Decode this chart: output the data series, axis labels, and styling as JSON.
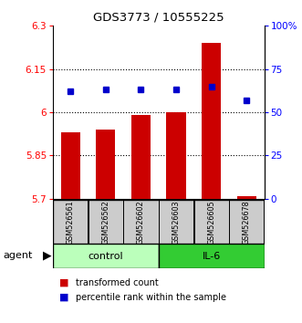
{
  "title": "GDS3773 / 10555225",
  "samples": [
    "GSM526561",
    "GSM526562",
    "GSM526602",
    "GSM526603",
    "GSM526605",
    "GSM526678"
  ],
  "bar_values": [
    5.93,
    5.94,
    5.99,
    6.0,
    6.24,
    5.71
  ],
  "bar_bottom": 5.7,
  "dot_values": [
    62,
    63,
    63,
    63,
    65,
    57
  ],
  "ylim_left": [
    5.7,
    6.3
  ],
  "ylim_right": [
    0,
    100
  ],
  "yticks_left": [
    5.7,
    5.85,
    6.0,
    6.15,
    6.3
  ],
  "yticks_right": [
    0,
    25,
    50,
    75,
    100
  ],
  "ytick_labels_left": [
    "5.7",
    "5.85",
    "6",
    "6.15",
    "6.3"
  ],
  "ytick_labels_right": [
    "0",
    "25",
    "50",
    "75",
    "100%"
  ],
  "hlines": [
    5.85,
    6.0,
    6.15
  ],
  "bar_color": "#cc0000",
  "dot_color": "#0000cc",
  "control_color": "#bbffbb",
  "il6_color": "#33cc33",
  "label_bg_color": "#cccccc",
  "legend_bar_label": "transformed count",
  "legend_dot_label": "percentile rank within the sample",
  "control_samples": 3,
  "il6_samples": 3
}
